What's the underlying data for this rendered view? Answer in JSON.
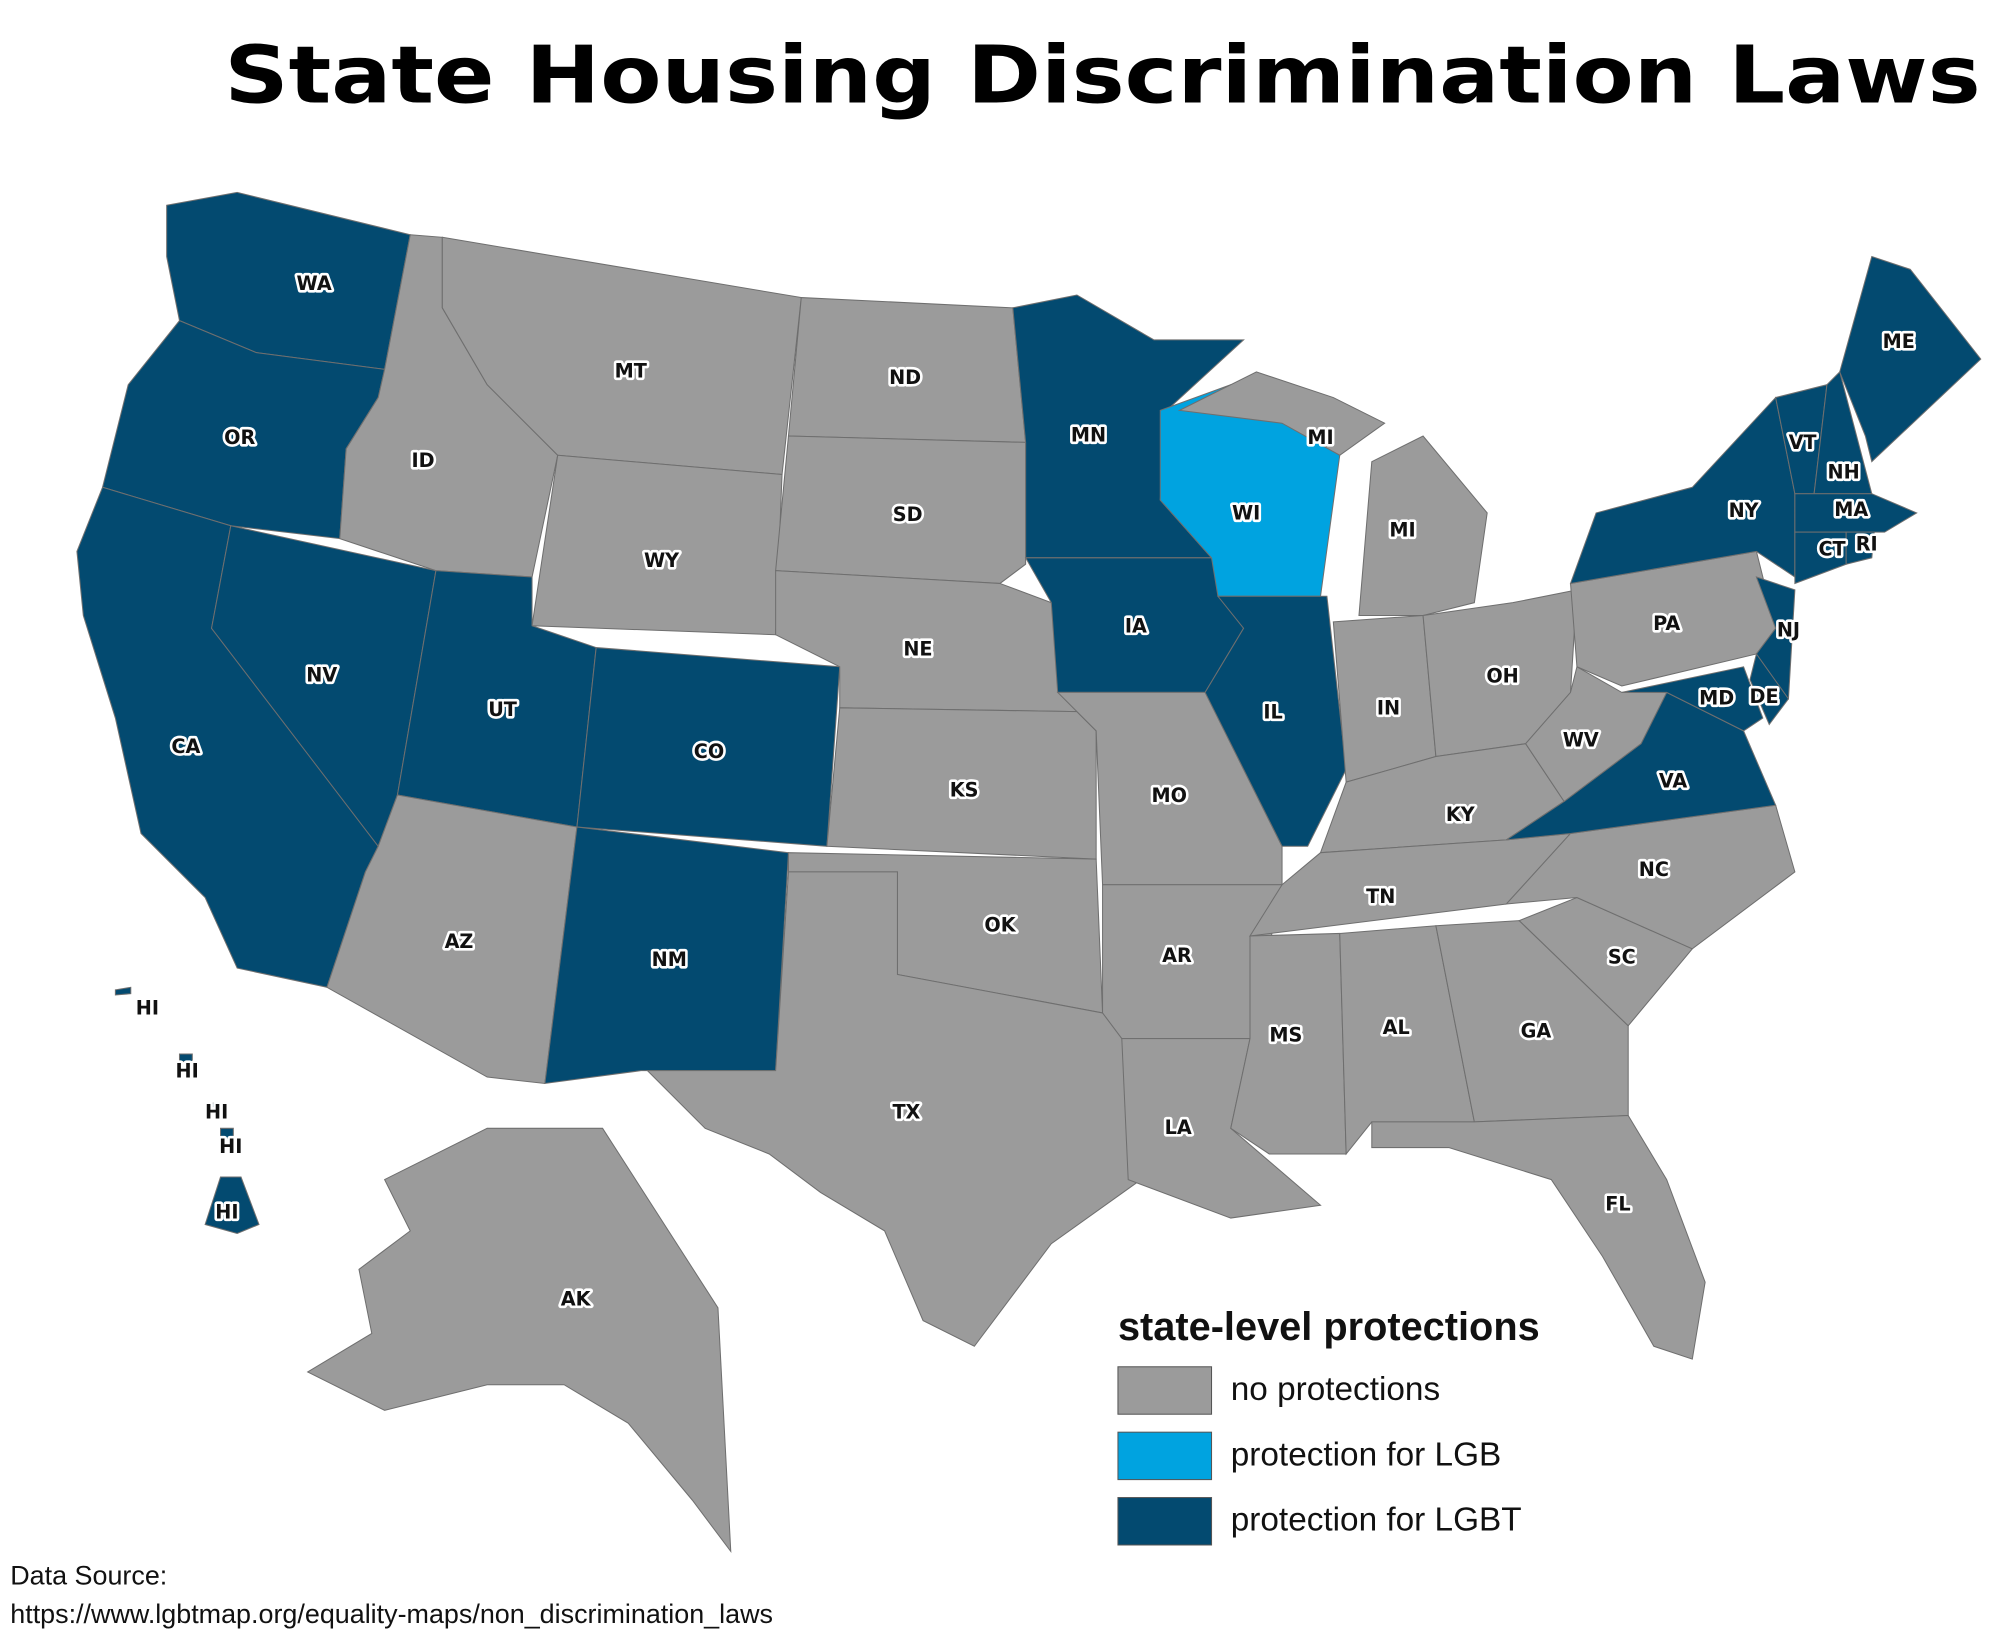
{
  "title": "State Housing Discrimination Laws",
  "legend": {
    "title": "state-level protections",
    "items": [
      {
        "label": "no protections",
        "color": "#9b9b9b"
      },
      {
        "label": "protection for LGB",
        "color": "#00a3e0"
      },
      {
        "label": "protection for LGBT",
        "color": "#034a70"
      }
    ]
  },
  "states": [
    {
      "label": "WA",
      "category": 2
    },
    {
      "label": "OR",
      "category": 2
    },
    {
      "label": "CA",
      "category": 2
    },
    {
      "label": "NV",
      "category": 2
    },
    {
      "label": "ID",
      "category": 0
    },
    {
      "label": "MT",
      "category": 0
    },
    {
      "label": "WY",
      "category": 0
    },
    {
      "label": "UT",
      "category": 2
    },
    {
      "label": "CO",
      "category": 2
    },
    {
      "label": "AZ",
      "category": 0
    },
    {
      "label": "NM",
      "category": 2
    },
    {
      "label": "ND",
      "category": 0
    },
    {
      "label": "SD",
      "category": 0
    },
    {
      "label": "NE",
      "category": 0
    },
    {
      "label": "KS",
      "category": 0
    },
    {
      "label": "OK",
      "category": 0
    },
    {
      "label": "TX",
      "category": 0
    },
    {
      "label": "MN",
      "category": 2
    },
    {
      "label": "IA",
      "category": 2
    },
    {
      "label": "MO",
      "category": 0
    },
    {
      "label": "AR",
      "category": 0
    },
    {
      "label": "LA",
      "category": 0
    },
    {
      "label": "WI",
      "category": 1
    },
    {
      "label": "IL",
      "category": 2
    },
    {
      "label": "MI",
      "category": 0
    },
    {
      "label": "MI",
      "category": 0
    },
    {
      "label": "IN",
      "category": 0
    },
    {
      "label": "OH",
      "category": 0
    },
    {
      "label": "KY",
      "category": 0
    },
    {
      "label": "TN",
      "category": 0
    },
    {
      "label": "MS",
      "category": 0
    },
    {
      "label": "AL",
      "category": 0
    },
    {
      "label": "GA",
      "category": 0
    },
    {
      "label": "FL",
      "category": 0
    },
    {
      "label": "SC",
      "category": 0
    },
    {
      "label": "NC",
      "category": 0
    },
    {
      "label": "VA",
      "category": 2
    },
    {
      "label": "WV",
      "category": 0
    },
    {
      "label": "PA",
      "category": 0
    },
    {
      "label": "NY",
      "category": 2
    },
    {
      "label": "NJ",
      "category": 2
    },
    {
      "label": "MD",
      "category": 2
    },
    {
      "label": "DE",
      "category": 2
    },
    {
      "label": "VT",
      "category": 2
    },
    {
      "label": "NH",
      "category": 2
    },
    {
      "label": "ME",
      "category": 2
    },
    {
      "label": "MA",
      "category": 2
    },
    {
      "label": "CT",
      "category": 2
    },
    {
      "label": "RI",
      "category": 2
    },
    {
      "label": "AK",
      "category": 0
    },
    {
      "label": "HI",
      "category": 2
    },
    {
      "label": "HI",
      "category": 2
    },
    {
      "label": "HI",
      "category": 2
    },
    {
      "label": "HI",
      "category": 2
    },
    {
      "label": "HI",
      "category": 2
    }
  ],
  "source": {
    "label": "Data Source:",
    "url": "https://www.lgbtmap.org/equality-maps/non_discrimination_laws"
  }
}
